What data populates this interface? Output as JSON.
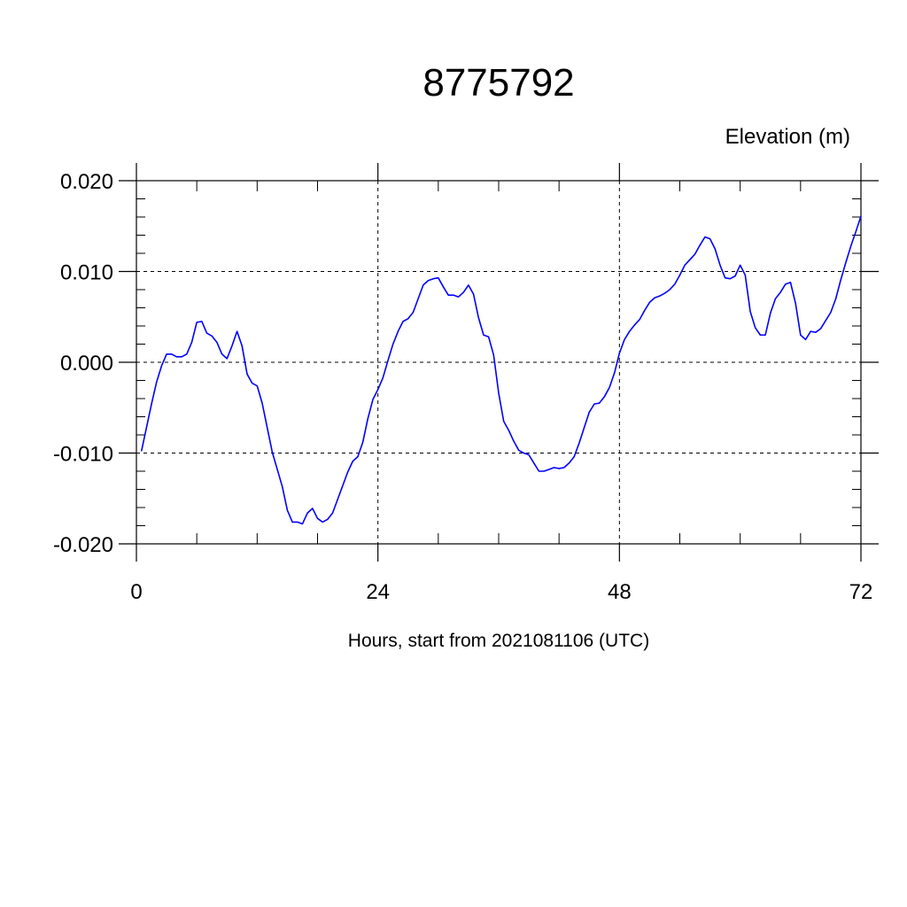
{
  "chart_data": {
    "type": "line",
    "title": "8775792",
    "ylabel": "Elevation (m)",
    "xlabel": "Hours, start from 2021081106 (UTC)",
    "xlim": [
      0,
      72
    ],
    "ylim": [
      -0.02,
      0.02
    ],
    "x_ticks": [
      0,
      24,
      48,
      72
    ],
    "x_tick_labels": [
      "0",
      "24",
      "48",
      "72"
    ],
    "y_ticks": [
      -0.02,
      -0.01,
      0.0,
      0.01,
      0.02
    ],
    "y_tick_labels": [
      "-0.020",
      "-0.010",
      "0.000",
      "0.010",
      "0.020"
    ],
    "grid": true,
    "series": [
      {
        "color": "#0000ff",
        "x": [
          0.5,
          1,
          1.5,
          2,
          2.5,
          3,
          3.5,
          4,
          4.5,
          5,
          5.5,
          6,
          6.5,
          7,
          7.5,
          8,
          8.5,
          9,
          9.5,
          10,
          10.5,
          11,
          11.5,
          12,
          12.5,
          13,
          13.5,
          14,
          14.5,
          15,
          15.5,
          16,
          16.5,
          17,
          17.5,
          18,
          18.5,
          19,
          19.5,
          20,
          20.5,
          21,
          21.5,
          22,
          22.5,
          23,
          23.5,
          24,
          24.5,
          25,
          25.5,
          26,
          26.5,
          27,
          27.5,
          28,
          28.5,
          29,
          29.5,
          30,
          30.5,
          31,
          31.5,
          32,
          32.5,
          33,
          33.5,
          34,
          34.5,
          35,
          35.5,
          36,
          36.5,
          37,
          37.5,
          38,
          38.5,
          39,
          39.5,
          40,
          40.5,
          41,
          41.5,
          42,
          42.5,
          43,
          43.5,
          44,
          44.5,
          45,
          45.5,
          46,
          46.5,
          47,
          47.5,
          48,
          48.5,
          49,
          49.5,
          50,
          50.5,
          51,
          51.5,
          52,
          52.5,
          53,
          53.5,
          54,
          54.5,
          55,
          55.5,
          56,
          56.5,
          57,
          57.5,
          58,
          58.5,
          59,
          59.5,
          60,
          60.5,
          61,
          61.5,
          62,
          62.5,
          63,
          63.5,
          64,
          64.5,
          65,
          65.5,
          66,
          66.5,
          67,
          67.5,
          68,
          68.5,
          69,
          69.5,
          70,
          70.5,
          71,
          71.5,
          72
        ],
        "y": [
          -0.0098,
          -0.0072,
          -0.0046,
          -0.0022,
          -0.0004,
          0.0009,
          0.0009,
          0.0006,
          0.0006,
          0.0009,
          0.0022,
          0.0044,
          0.0045,
          0.0032,
          0.0029,
          0.0022,
          0.0009,
          0.0004,
          0.0018,
          0.0034,
          0.0018,
          -0.0013,
          -0.0023,
          -0.0026,
          -0.0045,
          -0.0072,
          -0.0099,
          -0.0118,
          -0.0137,
          -0.0163,
          -0.0176,
          -0.0176,
          -0.0178,
          -0.0166,
          -0.0161,
          -0.0172,
          -0.0176,
          -0.0173,
          -0.0166,
          -0.0151,
          -0.0136,
          -0.0121,
          -0.0109,
          -0.0104,
          -0.0088,
          -0.0062,
          -0.0041,
          -0.003,
          -0.0017,
          0.0002,
          0.002,
          0.0034,
          0.0045,
          0.0048,
          0.0055,
          0.007,
          0.0085,
          0.009,
          0.0092,
          0.0093,
          0.0083,
          0.0074,
          0.0074,
          0.0072,
          0.0077,
          0.0085,
          0.0075,
          0.0049,
          0.003,
          0.0028,
          0.0008,
          -0.0034,
          -0.0065,
          -0.0075,
          -0.0087,
          -0.0097,
          -0.01,
          -0.0102,
          -0.0111,
          -0.012,
          -0.012,
          -0.0118,
          -0.0116,
          -0.0117,
          -0.0116,
          -0.0111,
          -0.0104,
          -0.0089,
          -0.0072,
          -0.0055,
          -0.0046,
          -0.0045,
          -0.0038,
          -0.0028,
          -0.0012,
          0.001,
          0.0025,
          0.0034,
          0.0041,
          0.0047,
          0.0057,
          0.0066,
          0.0071,
          0.0073,
          0.0076,
          0.008,
          0.0086,
          0.0096,
          0.0107,
          0.0113,
          0.0119,
          0.0129,
          0.0138,
          0.0136,
          0.0125,
          0.0107,
          0.0093,
          0.0092,
          0.0095,
          0.0107,
          0.0096,
          0.0056,
          0.0038,
          0.003,
          0.003,
          0.0054,
          0.007,
          0.0077,
          0.0086,
          0.0088,
          0.0065,
          0.003,
          0.0025,
          0.0034,
          0.0033,
          0.0037,
          0.0046,
          0.0055,
          0.007,
          0.0091,
          0.011,
          0.0128,
          0.0144,
          0.0161
        ]
      }
    ]
  }
}
